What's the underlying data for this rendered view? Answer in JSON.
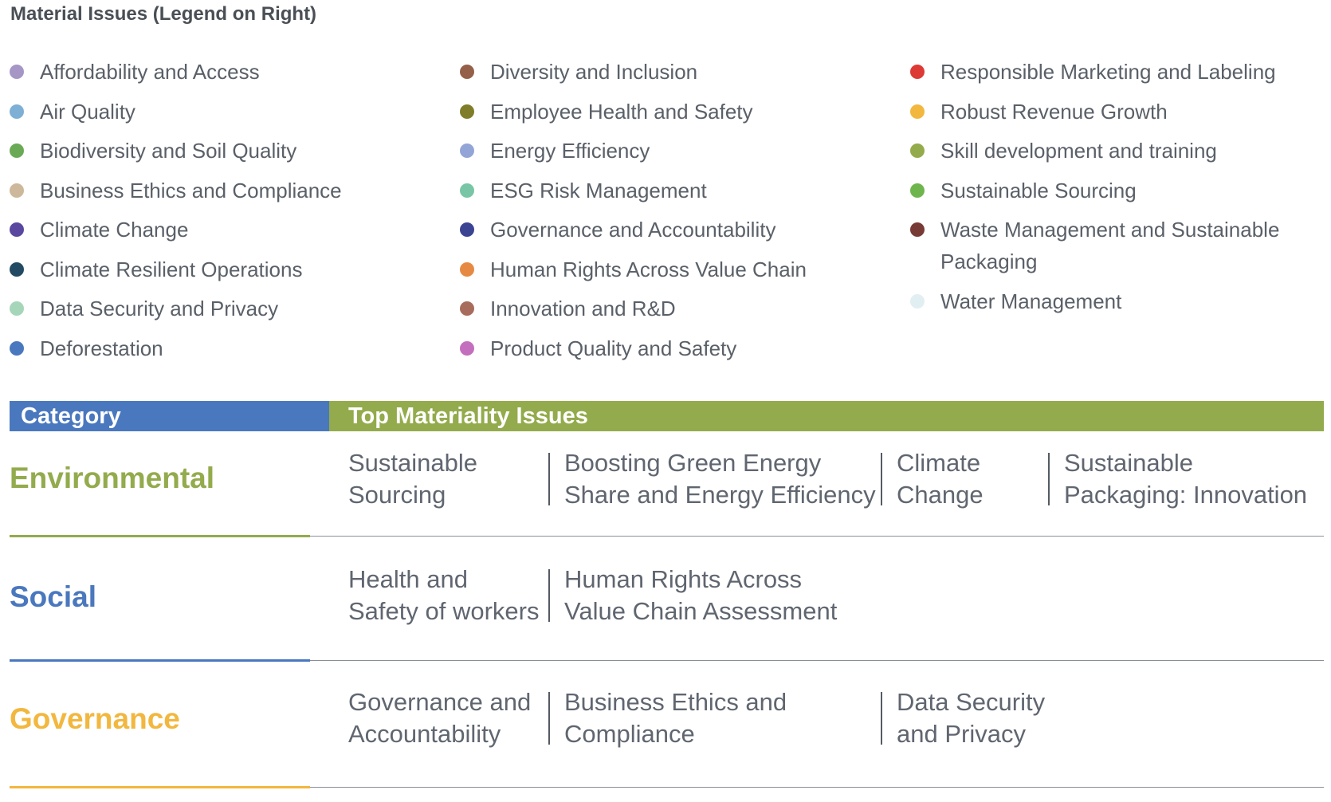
{
  "title": "Material Issues (Legend on Right)",
  "legend": {
    "columns": [
      [
        {
          "label": "Affordability and Access",
          "color": "#a596c6"
        },
        {
          "label": "Air Quality",
          "color": "#7eafd4"
        },
        {
          "label": "Biodiversity and Soil Quality",
          "color": "#6aaa55"
        },
        {
          "label": "Business Ethics and Compliance",
          "color": "#cdb89c"
        },
        {
          "label": "Climate Change",
          "color": "#5a47a0"
        },
        {
          "label": "Climate Resilient Operations",
          "color": "#224a63"
        },
        {
          "label": "Data Security and Privacy",
          "color": "#a6d6b9"
        },
        {
          "label": "Deforestation",
          "color": "#4a78be"
        }
      ],
      [
        {
          "label": "Diversity and Inclusion",
          "color": "#94604a"
        },
        {
          "label": "Employee Health and Safety",
          "color": "#7f7d2a"
        },
        {
          "label": "Energy Efficiency",
          "color": "#93a5d6"
        },
        {
          "label": "ESG Risk Management",
          "color": "#79c6a6"
        },
        {
          "label": "Governance and Accountability",
          "color": "#3b4393"
        },
        {
          "label": "Human Rights Across Value Chain",
          "color": "#e68a43"
        },
        {
          "label": "Innovation and R&D",
          "color": "#a86c5c"
        },
        {
          "label": "Product Quality and Safety",
          "color": "#c36fbe"
        }
      ],
      [
        {
          "label": "Responsible Marketing and Labeling",
          "color": "#dd3a35"
        },
        {
          "label": "Robust Revenue Growth",
          "color": "#f2b73f"
        },
        {
          "label": "Skill development and training",
          "color": "#94ab4c"
        },
        {
          "label": "Sustainable Sourcing",
          "color": "#6fb54d"
        },
        {
          "label": "Waste Management and Sustainable Packaging",
          "color": "#773a35",
          "lines": [
            "Waste Management and Sustainable",
            "Packaging"
          ]
        },
        {
          "label": "Water Management",
          "color": "#e1eff3"
        }
      ]
    ]
  },
  "table": {
    "header": {
      "category": "Category",
      "issues": "Top Materiality Issues"
    },
    "rows": [
      {
        "category": "Environmental",
        "color": "#93ab4c",
        "issues": [
          [
            "Sustainable",
            "Sourcing"
          ],
          [
            "Boosting Green Energy",
            "Share and Energy Efficiency"
          ],
          [
            "Climate",
            "Change"
          ],
          [
            "Sustainable",
            "Packaging: Innovation"
          ]
        ]
      },
      {
        "category": "Social",
        "color": "#4a78be",
        "issues": [
          [
            "Health and",
            "Safety of workers"
          ],
          [
            "Human Rights Across",
            "Value Chain Assessment"
          ]
        ]
      },
      {
        "category": "Governance",
        "color": "#f2b73f",
        "issues": [
          [
            "Governance and",
            "Accountability"
          ],
          [
            "Business Ethics and",
            "Compliance"
          ],
          [
            "Data Security",
            "and Privacy"
          ]
        ]
      }
    ]
  }
}
